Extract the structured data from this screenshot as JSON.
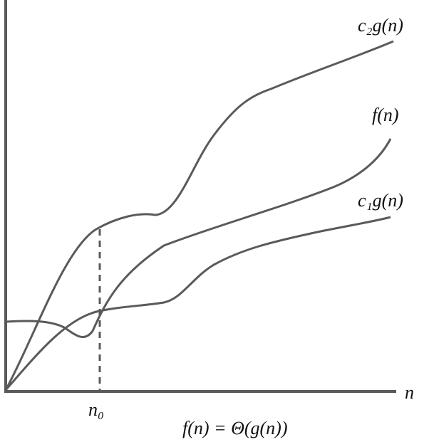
{
  "curves": [
    {
      "label": "c₂g(n)"
    },
    {
      "label": "f(n)"
    },
    {
      "label": "c₁g(n)"
    }
  ],
  "axis": {
    "x_label": "n",
    "marker_label": "n₀"
  },
  "caption": "f(n) = Θ(g(n))"
}
